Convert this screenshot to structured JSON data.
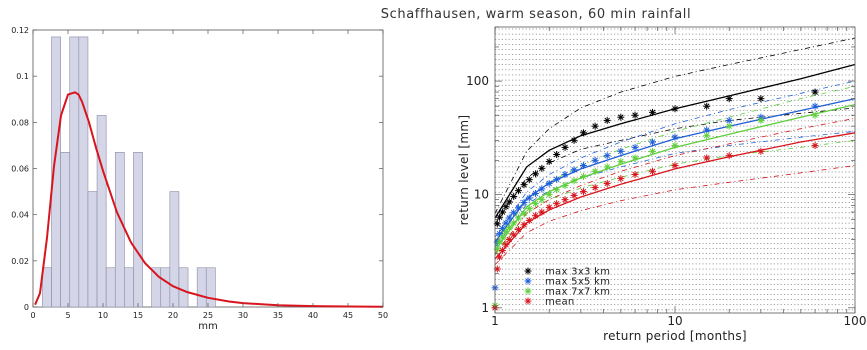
{
  "title": "Schaffhausen, warm season, 60 min rainfall",
  "chart_data": [
    {
      "type": "bar",
      "xlabel": "mm",
      "ylabel": "",
      "xlim": [
        0,
        50
      ],
      "ylim": [
        0,
        0.12
      ],
      "xticks": [
        0,
        5,
        10,
        15,
        20,
        25,
        30,
        35,
        40,
        45,
        50
      ],
      "yticks": [
        0,
        0.02,
        0.04,
        0.06,
        0.08,
        0.1,
        0.12
      ],
      "bin_width": 1.3,
      "bins": [
        {
          "x": 0.7,
          "value": 0.0
        },
        {
          "x": 2.0,
          "value": 0.017
        },
        {
          "x": 3.3,
          "value": 0.117
        },
        {
          "x": 4.6,
          "value": 0.067
        },
        {
          "x": 5.9,
          "value": 0.117
        },
        {
          "x": 7.2,
          "value": 0.117
        },
        {
          "x": 8.5,
          "value": 0.05
        },
        {
          "x": 9.8,
          "value": 0.083
        },
        {
          "x": 11.1,
          "value": 0.017
        },
        {
          "x": 12.4,
          "value": 0.067
        },
        {
          "x": 13.7,
          "value": 0.017
        },
        {
          "x": 15.0,
          "value": 0.067
        },
        {
          "x": 16.3,
          "value": 0.0
        },
        {
          "x": 17.6,
          "value": 0.017
        },
        {
          "x": 18.9,
          "value": 0.017
        },
        {
          "x": 20.2,
          "value": 0.05
        },
        {
          "x": 21.5,
          "value": 0.017
        },
        {
          "x": 22.8,
          "value": 0.0
        },
        {
          "x": 24.1,
          "value": 0.017
        },
        {
          "x": 25.4,
          "value": 0.017
        },
        {
          "x": 26.7,
          "value": 0.0
        }
      ],
      "fit_curve": {
        "name": "",
        "x": [
          0.3,
          1,
          2,
          3,
          4,
          5,
          6,
          6.5,
          7,
          8,
          9,
          10,
          12,
          14,
          16,
          18,
          20,
          22,
          25,
          28,
          30,
          35,
          40,
          45,
          50
        ],
        "y": [
          0.001,
          0.006,
          0.03,
          0.061,
          0.083,
          0.092,
          0.093,
          0.092,
          0.089,
          0.08,
          0.069,
          0.059,
          0.041,
          0.028,
          0.019,
          0.013,
          0.009,
          0.0065,
          0.004,
          0.0024,
          0.0017,
          0.0008,
          0.0004,
          0.0002,
          0.0001
        ]
      },
      "colors": {
        "bars": "#d4d6e8",
        "bar_edge": "#8a8aa6",
        "curve": "#d9141c"
      }
    },
    {
      "type": "scatter",
      "xlabel": "return period [months]",
      "ylabel": "return level [mm]",
      "xscale": "log",
      "yscale": "log",
      "xlim": [
        1,
        100
      ],
      "ylim": [
        0.9,
        300
      ],
      "xticks": [
        1,
        10,
        100
      ],
      "yticks": [
        1,
        10,
        100
      ],
      "legend_position": "bottom-left",
      "series": [
        {
          "name": "max 3x3 km",
          "color": "#000000",
          "x": [
            1.03,
            1.06,
            1.1,
            1.15,
            1.2,
            1.27,
            1.35,
            1.45,
            1.55,
            1.68,
            1.82,
            2.0,
            2.2,
            2.45,
            2.75,
            3.1,
            3.6,
            4.2,
            5.0,
            6.0,
            7.5,
            10.0,
            15.0,
            20.0,
            30.0,
            60.0
          ],
          "y": [
            5.5,
            6.3,
            7.0,
            7.8,
            8.6,
            9.6,
            10.8,
            12.2,
            13.5,
            15.2,
            17.0,
            19.5,
            22.5,
            26.0,
            30.0,
            35.0,
            40.0,
            45.0,
            48.0,
            50.0,
            53.0,
            57.0,
            60.0,
            70.0,
            70.0,
            80.0
          ]
        },
        {
          "name": "max 5x5 km",
          "color": "#1f5fd8",
          "x": [
            1.0,
            1.03,
            1.06,
            1.1,
            1.15,
            1.2,
            1.27,
            1.35,
            1.45,
            1.55,
            1.68,
            1.82,
            2.0,
            2.2,
            2.45,
            2.75,
            3.1,
            3.6,
            4.2,
            5.0,
            6.0,
            7.5,
            10.0,
            15.0,
            20.0,
            30.0,
            60.0
          ],
          "y": [
            1.5,
            3.8,
            4.5,
            5.0,
            5.6,
            6.2,
            6.9,
            7.6,
            8.5,
            9.3,
            10.2,
            11.2,
            12.5,
            13.6,
            15.0,
            16.5,
            18.0,
            20.0,
            22.0,
            24.0,
            26.0,
            29.0,
            32.0,
            37.0,
            45.0,
            48.0,
            60.0
          ]
        },
        {
          "name": "max 7x7 km",
          "color": "#5ecf3a",
          "x": [
            1.0,
            1.03,
            1.06,
            1.1,
            1.15,
            1.2,
            1.27,
            1.35,
            1.45,
            1.55,
            1.68,
            1.82,
            2.0,
            2.2,
            2.45,
            2.75,
            3.1,
            3.6,
            4.2,
            5.0,
            6.0,
            7.5,
            10.0,
            15.0,
            20.0,
            30.0,
            60.0
          ],
          "y": [
            1.05,
            3.3,
            3.8,
            4.2,
            4.7,
            5.1,
            5.6,
            6.2,
            6.8,
            7.5,
            8.3,
            9.0,
            10.0,
            11.0,
            12.0,
            13.2,
            14.4,
            16.0,
            17.5,
            19.5,
            21.0,
            24.0,
            27.0,
            33.0,
            40.0,
            45.0,
            50.0
          ]
        },
        {
          "name": "mean",
          "color": "#d9141c",
          "x": [
            1.0,
            1.03,
            1.06,
            1.1,
            1.15,
            1.2,
            1.27,
            1.35,
            1.45,
            1.55,
            1.68,
            1.82,
            2.0,
            2.2,
            2.45,
            2.75,
            3.1,
            3.6,
            4.2,
            5.0,
            6.0,
            7.5,
            10.0,
            15.0,
            20.0,
            30.0,
            60.0
          ],
          "y": [
            1.0,
            2.2,
            2.8,
            3.2,
            3.6,
            4.0,
            4.4,
            4.9,
            5.4,
            5.9,
            6.5,
            7.0,
            7.7,
            8.3,
            9.0,
            9.8,
            10.6,
            11.5,
            12.5,
            13.8,
            15.0,
            16.0,
            18.0,
            21.0,
            22.0,
            24.0,
            27.0
          ]
        }
      ],
      "fit_lines": [
        {
          "color": "#000000",
          "x": [
            1,
            1.5,
            2,
            3,
            5,
            10,
            20,
            50,
            100
          ],
          "y": [
            6.2,
            17.5,
            24.5,
            33.0,
            42.0,
            57.0,
            74.0,
            105.0,
            140.0
          ],
          "ci_upper": [
            6.8,
            24.0,
            38.0,
            58.0,
            80.0,
            110.0,
            140.0,
            190.0,
            240.0
          ],
          "ci_lower": [
            5.5,
            14.0,
            19.0,
            25.0,
            30.0,
            38.0,
            45.0,
            52.0,
            58.0
          ]
        },
        {
          "color": "#1f5fd8",
          "x": [
            1,
            1.5,
            2,
            3,
            5,
            10,
            20,
            50,
            100
          ],
          "y": [
            3.8,
            9.2,
            12.6,
            16.8,
            22.0,
            31.0,
            40.0,
            55.0,
            70.0
          ],
          "ci_upper": [
            4.2,
            10.5,
            15.0,
            21.0,
            29.0,
            42.0,
            56.0,
            78.0,
            100.0
          ],
          "ci_lower": [
            3.4,
            8.2,
            10.8,
            14.0,
            17.5,
            23.0,
            27.0,
            32.0,
            36.0
          ]
        },
        {
          "color": "#5ecf3a",
          "x": [
            1,
            1.5,
            2,
            3,
            5,
            10,
            20,
            50,
            100
          ],
          "y": [
            3.2,
            7.8,
            10.6,
            14.0,
            18.5,
            26.0,
            34.0,
            48.0,
            62.0
          ],
          "ci_upper": [
            3.5,
            9.0,
            12.8,
            18.0,
            25.0,
            36.0,
            48.0,
            70.0,
            90.0
          ],
          "ci_lower": [
            2.9,
            6.8,
            9.0,
            11.4,
            14.2,
            18.5,
            22.0,
            26.0,
            30.0
          ]
        },
        {
          "color": "#d9141c",
          "x": [
            1,
            1.5,
            2,
            3,
            5,
            10,
            20,
            50,
            100
          ],
          "y": [
            2.7,
            5.6,
            7.3,
            9.5,
            12.3,
            16.8,
            21.5,
            29.0,
            35.0
          ],
          "ci_upper": [
            3.0,
            6.8,
            9.0,
            12.0,
            16.0,
            22.0,
            28.0,
            38.0,
            47.0
          ],
          "ci_lower": [
            2.4,
            4.6,
            5.8,
            7.2,
            8.8,
            11.0,
            12.8,
            15.5,
            18.0
          ]
        }
      ]
    }
  ]
}
